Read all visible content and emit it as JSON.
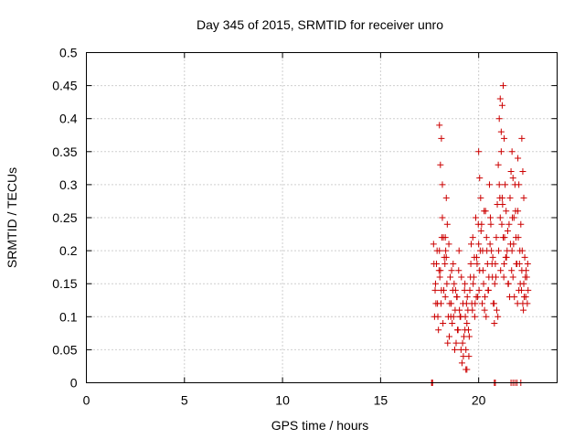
{
  "chart_data": {
    "type": "scatter",
    "title": "Day 345 of 2015, SRMTID for receiver unro",
    "xlabel": "GPS time / hours",
    "ylabel": "SRMTID / TECUs",
    "xlim": [
      0,
      24
    ],
    "ylim": [
      0,
      0.5
    ],
    "xticks": [
      0,
      5,
      10,
      15,
      20
    ],
    "yticks": [
      0,
      0.05,
      0.1,
      0.15,
      0.2,
      0.25,
      0.3,
      0.35,
      0.4,
      0.45,
      0.5
    ],
    "xtick_labels": [
      "0",
      "5",
      "10",
      "15",
      "20"
    ],
    "ytick_labels": [
      "0",
      "0.05",
      "0.1",
      "0.15",
      "0.2",
      "0.25",
      "0.3",
      "0.35",
      "0.4",
      "0.45",
      "0.5"
    ],
    "grid": true,
    "marker": "plus",
    "marker_color": "#cc0000",
    "series": [
      {
        "x_range": [
          17.6,
          22.6
        ],
        "y_range": [
          0,
          0.46
        ],
        "x": [
          17.7,
          17.75,
          17.8,
          17.85,
          17.9,
          17.95,
          18.0,
          18.05,
          18.1,
          18.15,
          18.2,
          18.25,
          18.3,
          18.35,
          18.4,
          18.45,
          18.5,
          18.55,
          18.6,
          18.65,
          18.7,
          18.75,
          18.8,
          18.85,
          18.9,
          18.95,
          19.0,
          19.05,
          19.1,
          19.15,
          19.2,
          19.25,
          19.3,
          19.35,
          19.4,
          19.45,
          19.5,
          19.55,
          19.6,
          19.65,
          19.7,
          19.75,
          19.8,
          19.85,
          19.9,
          19.95,
          20.0,
          20.05,
          20.1,
          20.15,
          20.2,
          20.25,
          20.3,
          20.35,
          20.4,
          20.45,
          20.5,
          20.55,
          20.6,
          20.65,
          20.7,
          20.75,
          20.8,
          20.85,
          20.9,
          20.95,
          21.0,
          21.05,
          21.1,
          21.15,
          21.2,
          21.25,
          21.3,
          21.35,
          21.4,
          21.45,
          21.5,
          21.55,
          21.6,
          21.65,
          21.7,
          21.75,
          21.8,
          21.85,
          21.9,
          21.95,
          22.0,
          22.05,
          22.1,
          22.15,
          22.2,
          22.25,
          22.3,
          22.35,
          22.4,
          22.45,
          22.5,
          17.72,
          17.82,
          17.92,
          18.02,
          18.12,
          18.22,
          18.32,
          18.42,
          18.52,
          18.62,
          18.72,
          18.82,
          18.92,
          19.02,
          19.12,
          19.22,
          19.32,
          19.42,
          19.52,
          19.62,
          19.72,
          19.82,
          19.92,
          20.02,
          20.12,
          20.22,
          20.32,
          20.42,
          20.52,
          20.62,
          20.72,
          20.82,
          20.92,
          21.02,
          21.12,
          21.22,
          21.32,
          21.42,
          21.52,
          21.62,
          21.72,
          21.82,
          21.92,
          22.02,
          22.12,
          22.22,
          22.32,
          22.42,
          22.52,
          17.78,
          17.88,
          17.98,
          18.08,
          18.18,
          18.28,
          18.38,
          18.48,
          18.58,
          18.68,
          18.78,
          18.88,
          18.98,
          19.08,
          19.18,
          19.28,
          19.38,
          19.48,
          19.58,
          19.68,
          19.78,
          19.88,
          19.98,
          20.08,
          20.18,
          20.28,
          20.38,
          20.48,
          20.58,
          20.68,
          20.78,
          20.88,
          20.98,
          21.08,
          21.18,
          21.28,
          21.38,
          21.48,
          21.58,
          21.68,
          21.78,
          21.88,
          21.98,
          22.08,
          22.18,
          22.28,
          22.38,
          22.48,
          18.0,
          18.05,
          18.1,
          18.15,
          21.05,
          21.1,
          21.15,
          21.2,
          21.25,
          21.3,
          20.0,
          20.05,
          22.0,
          22.05,
          18.3,
          18.35,
          19.3,
          19.35,
          19.4,
          21.7,
          21.75,
          22.2,
          22.25,
          22.3,
          17.6,
          17.62,
          17.65,
          20.8,
          20.85,
          21.65,
          21.75,
          21.85,
          21.95,
          22.15
        ],
        "y": [
          0.21,
          0.1,
          0.15,
          0.18,
          0.12,
          0.08,
          0.2,
          0.17,
          0.14,
          0.25,
          0.22,
          0.19,
          0.13,
          0.28,
          0.24,
          0.1,
          0.07,
          0.16,
          0.12,
          0.09,
          0.18,
          0.15,
          0.11,
          0.06,
          0.13,
          0.08,
          0.2,
          0.1,
          0.05,
          0.03,
          0.12,
          0.07,
          0.15,
          0.02,
          0.09,
          0.11,
          0.04,
          0.14,
          0.18,
          0.12,
          0.22,
          0.16,
          0.1,
          0.25,
          0.19,
          0.13,
          0.21,
          0.17,
          0.28,
          0.24,
          0.2,
          0.15,
          0.11,
          0.26,
          0.22,
          0.18,
          0.14,
          0.3,
          0.25,
          0.2,
          0.16,
          0.12,
          0.09,
          0.18,
          0.22,
          0.27,
          0.33,
          0.3,
          0.25,
          0.35,
          0.28,
          0.22,
          0.18,
          0.3,
          0.26,
          0.2,
          0.15,
          0.24,
          0.28,
          0.32,
          0.2,
          0.16,
          0.25,
          0.3,
          0.22,
          0.18,
          0.26,
          0.14,
          0.2,
          0.24,
          0.17,
          0.12,
          0.15,
          0.19,
          0.13,
          0.16,
          0.18,
          0.18,
          0.12,
          0.1,
          0.16,
          0.22,
          0.14,
          0.2,
          0.06,
          0.12,
          0.17,
          0.1,
          0.14,
          0.08,
          0.11,
          0.16,
          0.04,
          0.1,
          0.13,
          0.07,
          0.21,
          0.15,
          0.12,
          0.18,
          0.14,
          0.23,
          0.17,
          0.13,
          0.2,
          0.16,
          0.24,
          0.19,
          0.15,
          0.11,
          0.2,
          0.17,
          0.27,
          0.22,
          0.19,
          0.15,
          0.21,
          0.25,
          0.13,
          0.18,
          0.22,
          0.15,
          0.2,
          0.13,
          0.17,
          0.14,
          0.14,
          0.2,
          0.17,
          0.12,
          0.09,
          0.18,
          0.15,
          0.21,
          0.1,
          0.14,
          0.05,
          0.13,
          0.17,
          0.1,
          0.06,
          0.14,
          0.12,
          0.08,
          0.16,
          0.11,
          0.19,
          0.13,
          0.24,
          0.2,
          0.12,
          0.26,
          0.1,
          0.14,
          0.21,
          0.18,
          0.12,
          0.16,
          0.1,
          0.28,
          0.24,
          0.16,
          0.19,
          0.23,
          0.13,
          0.17,
          0.21,
          0.26,
          0.12,
          0.18,
          0.14,
          0.11,
          0.16,
          0.12,
          0.39,
          0.33,
          0.37,
          0.3,
          0.4,
          0.43,
          0.38,
          0.42,
          0.45,
          0.37,
          0.35,
          0.31,
          0.34,
          0.3,
          0.22,
          0.19,
          0.08,
          0.05,
          0.02,
          0.35,
          0.31,
          0.37,
          0.32,
          0.28,
          0,
          0,
          0,
          0,
          0,
          0,
          0,
          0,
          0,
          0
        ]
      }
    ]
  }
}
